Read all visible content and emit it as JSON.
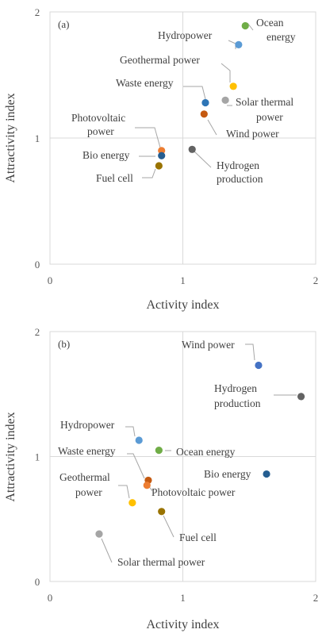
{
  "chart_data": [
    {
      "type": "scatter",
      "panel_label": "(a)",
      "xlabel": "Activity index",
      "ylabel": "Attractivity index",
      "xlim": [
        0,
        2
      ],
      "ylim": [
        0,
        2
      ],
      "x_ticks": [
        "0",
        "1",
        "2"
      ],
      "y_ticks": [
        "0",
        "1",
        "2"
      ],
      "reference_lines": {
        "x": 1,
        "y": 1
      },
      "grid": false,
      "points": [
        {
          "label": "Ocean energy",
          "x": 1.47,
          "y": 1.89,
          "color": "#70ad47"
        },
        {
          "label": "Hydropower",
          "x": 1.42,
          "y": 1.74,
          "color": "#5b9bd5"
        },
        {
          "label": "Geothermal power",
          "x": 1.38,
          "y": 1.41,
          "color": "#ffc000"
        },
        {
          "label": "Solar thermal power",
          "x": 1.32,
          "y": 1.3,
          "color": "#a5a5a5"
        },
        {
          "label": "Waste energy",
          "x": 1.17,
          "y": 1.28,
          "color": "#2e75b6"
        },
        {
          "label": "Wind power",
          "x": 1.16,
          "y": 1.19,
          "color": "#c55a11"
        },
        {
          "label": "Photovoltaic power",
          "x": 0.84,
          "y": 0.9,
          "color": "#ed7d31"
        },
        {
          "label": "Bio energy",
          "x": 0.84,
          "y": 0.86,
          "color": "#255e91"
        },
        {
          "label": "Hydrogen production",
          "x": 1.07,
          "y": 0.91,
          "color": "#636363"
        },
        {
          "label": "Fuel cell",
          "x": 0.82,
          "y": 0.78,
          "color": "#997300"
        }
      ]
    },
    {
      "type": "scatter",
      "panel_label": "(b)",
      "xlabel": "Activity index",
      "ylabel": "Attractivity index",
      "xlim": [
        0,
        2
      ],
      "ylim": [
        0,
        2
      ],
      "x_ticks": [
        "0",
        "1",
        "2"
      ],
      "y_ticks": [
        "0",
        "1",
        "2"
      ],
      "reference_lines": {
        "x": 1,
        "y": 1
      },
      "grid": false,
      "points": [
        {
          "label": "Wind power",
          "x": 1.57,
          "y": 1.73,
          "color": "#4472c4"
        },
        {
          "label": "Hydrogen production",
          "x": 1.89,
          "y": 1.48,
          "color": "#636363"
        },
        {
          "label": "Hydropower",
          "x": 0.67,
          "y": 1.13,
          "color": "#5b9bd5"
        },
        {
          "label": "Ocean energy",
          "x": 0.82,
          "y": 1.05,
          "color": "#70ad47"
        },
        {
          "label": "Waste energy",
          "x": 0.74,
          "y": 0.81,
          "color": "#c55a11"
        },
        {
          "label": "Photovoltaic power",
          "x": 0.73,
          "y": 0.77,
          "color": "#ed7d31"
        },
        {
          "label": "Bio energy",
          "x": 1.63,
          "y": 0.86,
          "color": "#255e91"
        },
        {
          "label": "Geothermal power",
          "x": 0.62,
          "y": 0.63,
          "color": "#ffc000"
        },
        {
          "label": "Fuel cell",
          "x": 0.84,
          "y": 0.56,
          "color": "#997300"
        },
        {
          "label": "Solar thermal power",
          "x": 0.37,
          "y": 0.38,
          "color": "#a5a5a5"
        }
      ]
    }
  ]
}
